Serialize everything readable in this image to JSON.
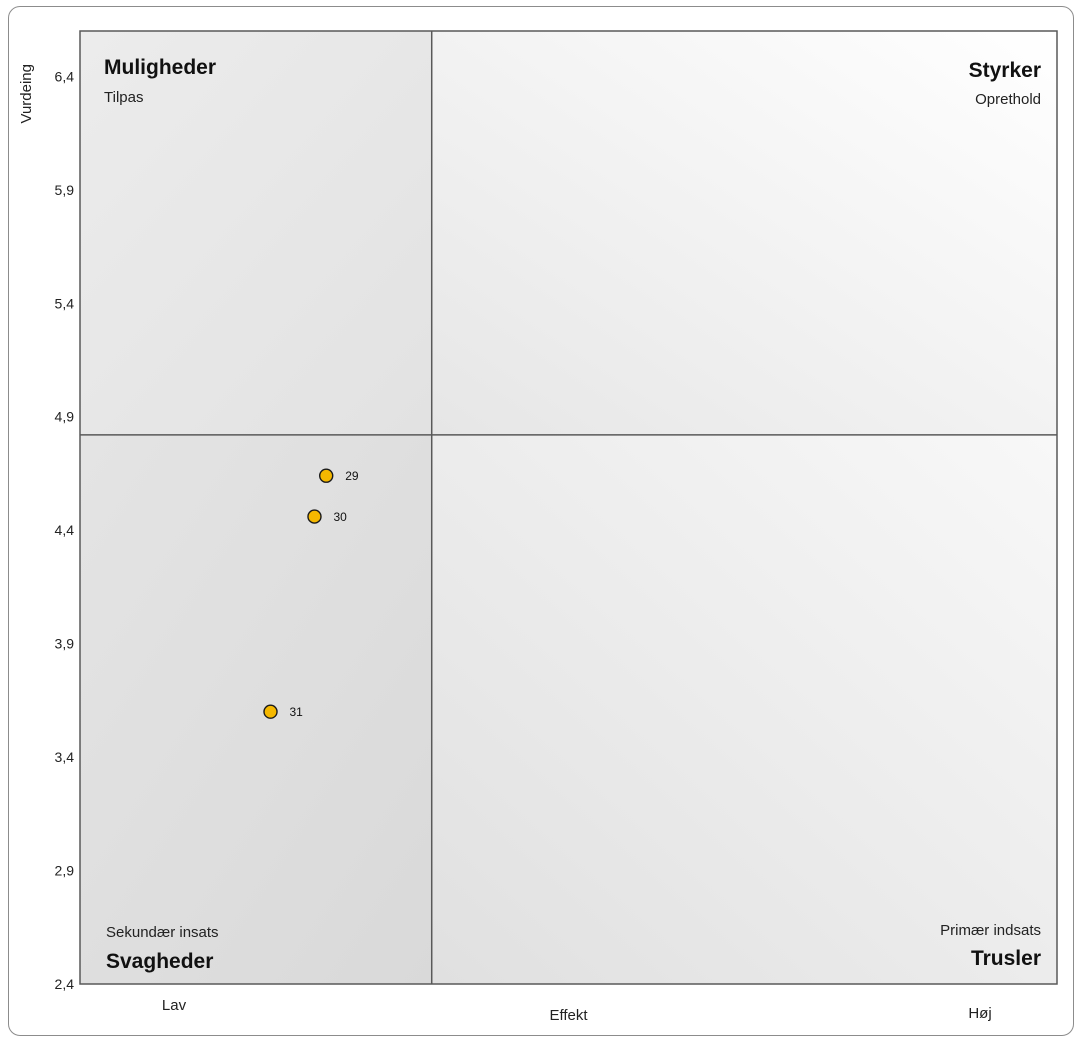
{
  "chart_data": {
    "type": "scatter",
    "title": "",
    "xlabel": "Effekt",
    "ylabel": "Vurdeing",
    "x_tick_labels": [
      "Lav",
      "Høj"
    ],
    "xlim": [
      0,
      100
    ],
    "ylim": [
      2.4,
      6.6
    ],
    "yticks": [
      "6,4",
      "5,9",
      "5,4",
      "4,9",
      "4,4",
      "3,9",
      "3,4",
      "2,9",
      "2,4"
    ],
    "ytick_values": [
      6.4,
      5.9,
      5.4,
      4.9,
      4.4,
      3.9,
      3.4,
      2.9,
      2.4
    ],
    "divider": {
      "x": 36,
      "y": 4.82
    },
    "grid": false,
    "legend": "none",
    "point_color": "#f5b800",
    "points": [
      {
        "label": "29",
        "x": 25.2,
        "y": 4.64
      },
      {
        "label": "30",
        "x": 24.0,
        "y": 4.46
      },
      {
        "label": "31",
        "x": 19.5,
        "y": 3.6
      }
    ],
    "quadrants": {
      "top_left": {
        "title": "Muligheder",
        "subtitle": "Tilpas"
      },
      "top_right": {
        "title": "Styrker",
        "subtitle": "Oprethold"
      },
      "bottom_left": {
        "title": "Svagheder",
        "subtitle": "Sekundær insats"
      },
      "bottom_right": {
        "title": "Trusler",
        "subtitle": "Primær indsats"
      }
    }
  }
}
